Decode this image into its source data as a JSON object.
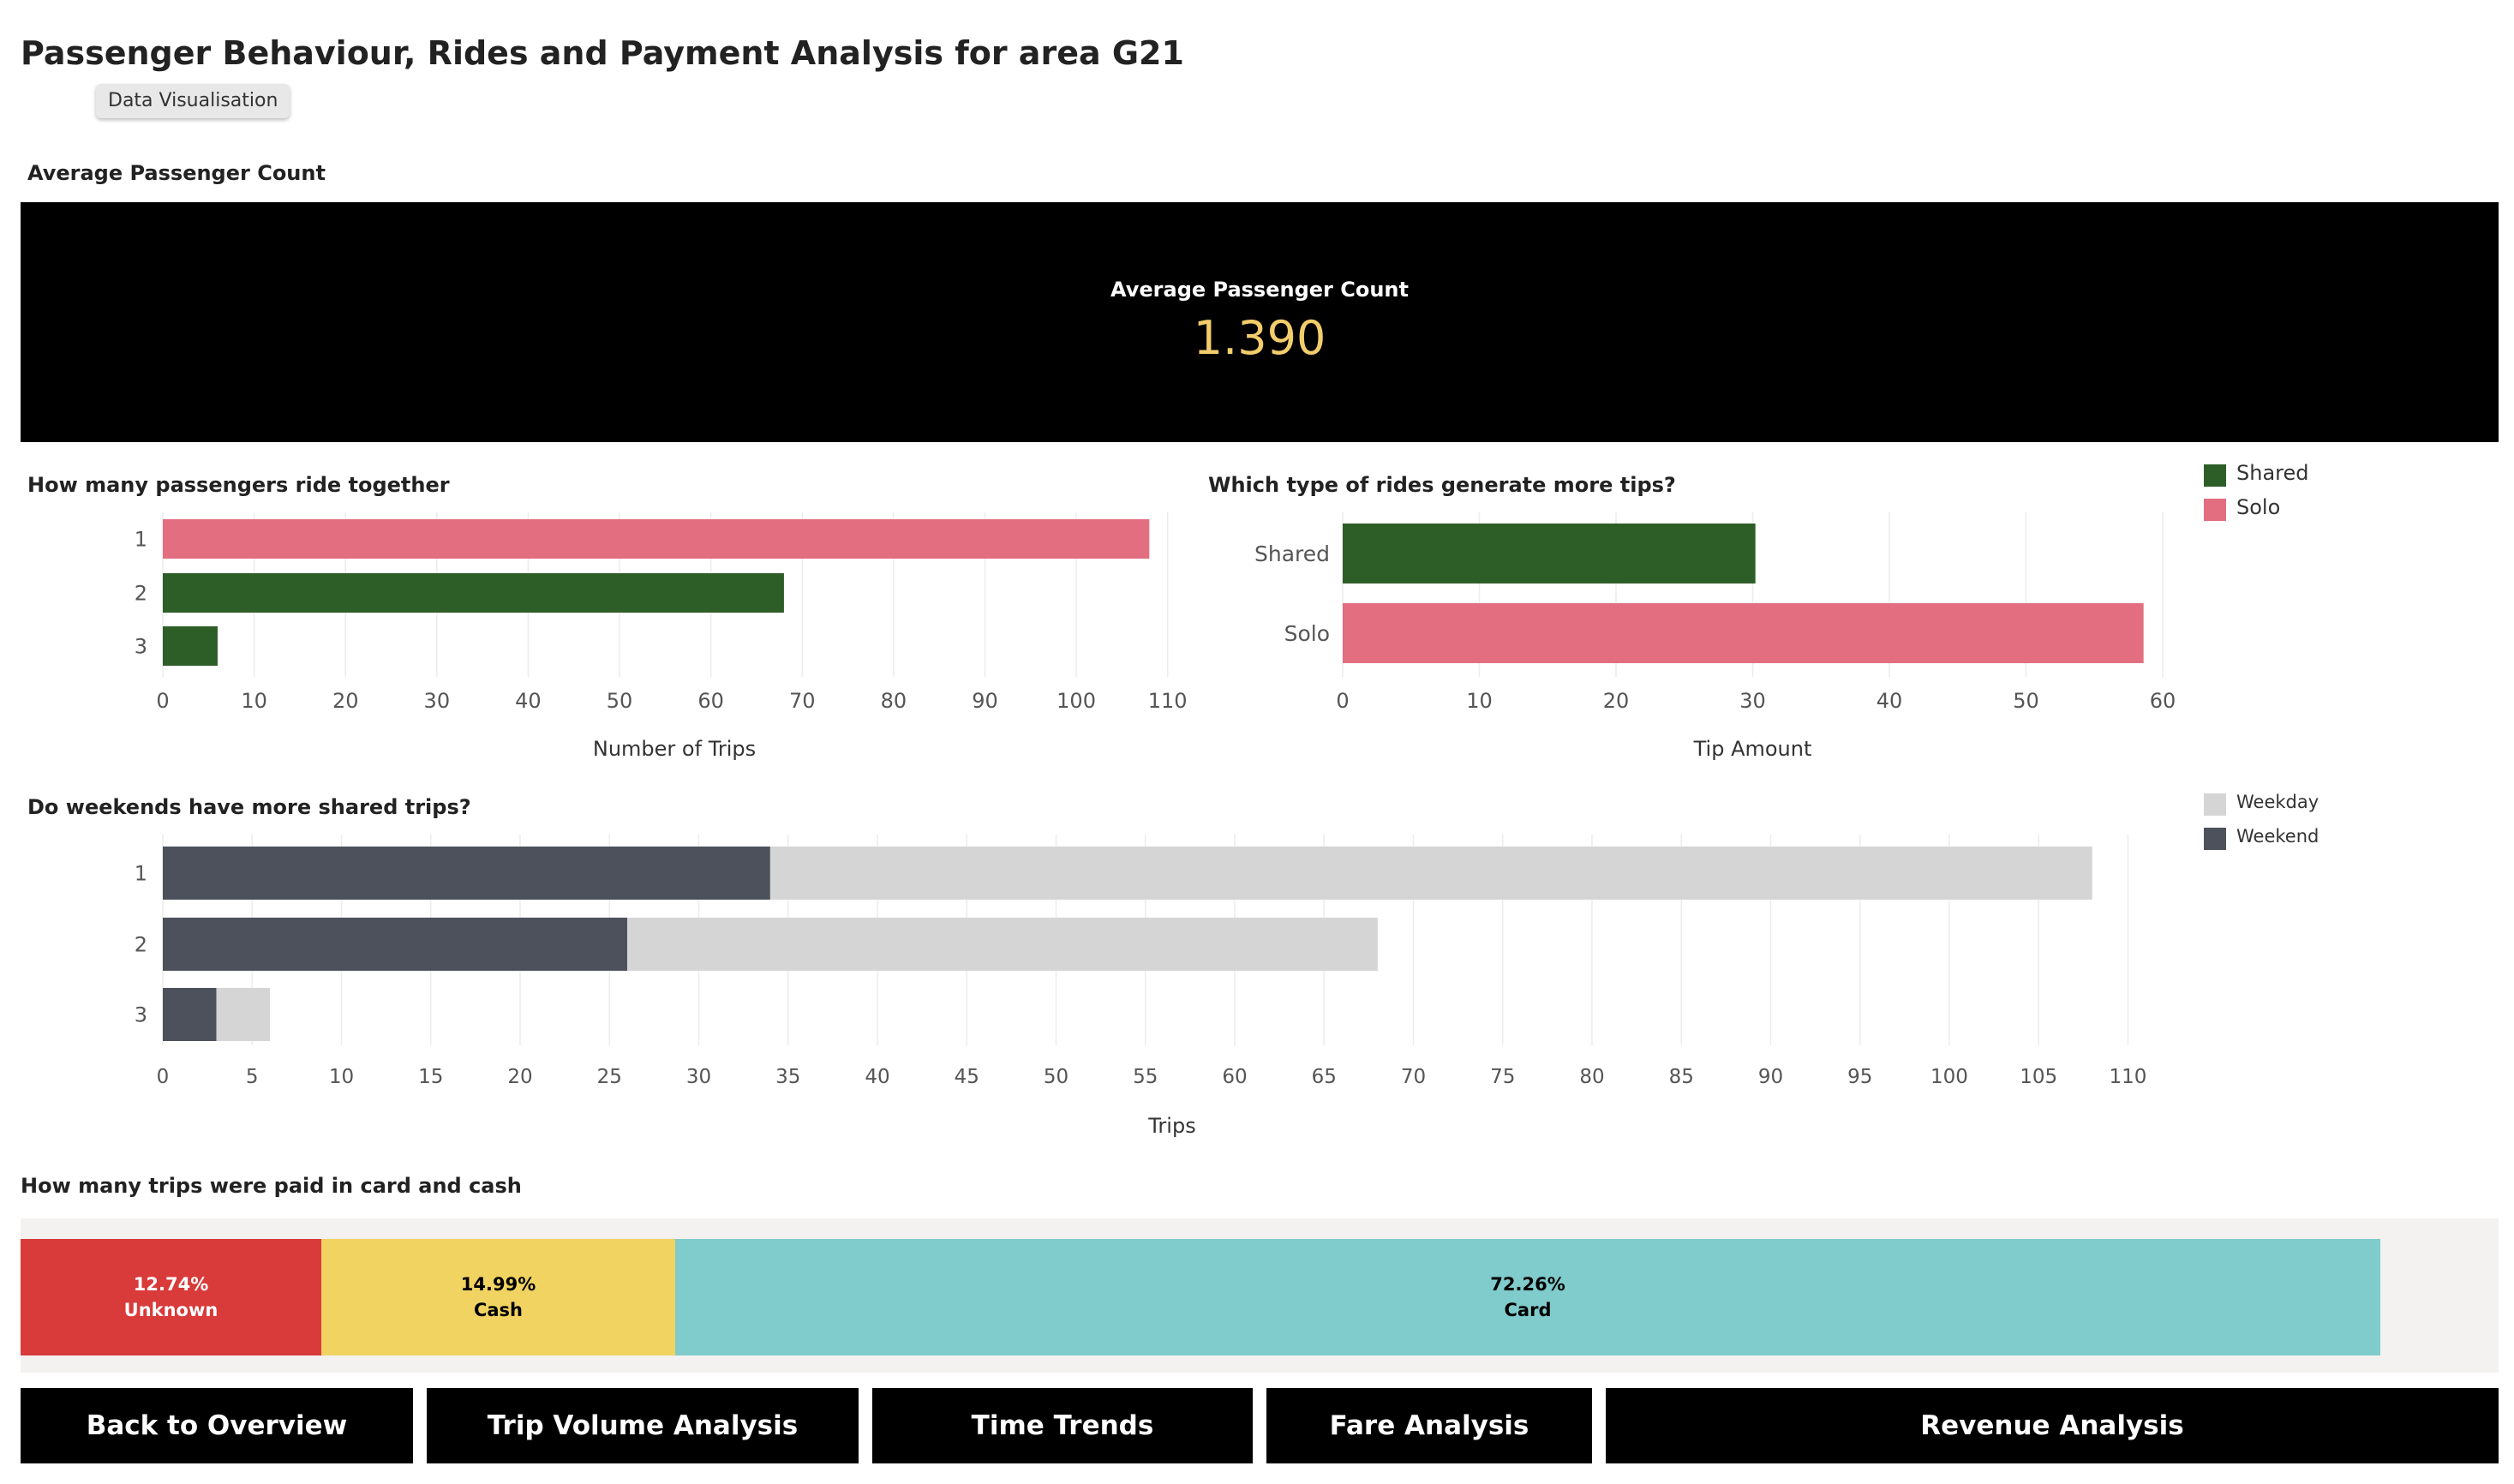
{
  "title": "Passenger Behaviour, Rides and Payment Analysis for area G21",
  "tag": "Data Visualisation",
  "kpi": {
    "section_title": "Average Passenger Count",
    "label": "Average Passenger Count",
    "value": "1.390",
    "value_color": "#f3cd6b"
  },
  "colors": {
    "shared": "#2e5e28",
    "solo": "#e26e80",
    "weekday": "#d5d5d5",
    "weekend": "#4c515c",
    "unknown": "#d93a3a",
    "cash": "#f1d361",
    "card": "#80cbcb",
    "button_bg": "#000000"
  },
  "legends": {
    "ride_type": [
      {
        "label": "Shared",
        "color": "#2e5e28"
      },
      {
        "label": "Solo",
        "color": "#e26e80"
      }
    ],
    "day_type": [
      {
        "label": "Weekday",
        "color": "#d5d5d5"
      },
      {
        "label": "Weekend",
        "color": "#4c515c"
      }
    ]
  },
  "payment": {
    "section_title": "How many trips were paid in card and cash",
    "segments": [
      {
        "percent": "12.74%",
        "label": "Unknown",
        "share": 12.74,
        "color": "#d93a3a",
        "text_color": "#ffffff"
      },
      {
        "percent": "14.99%",
        "label": "Cash",
        "share": 14.99,
        "color": "#f1d361",
        "text_color": "#000000"
      },
      {
        "percent": "72.26%",
        "label": "Card",
        "share": 72.26,
        "color": "#80cbcb",
        "text_color": "#000000"
      }
    ]
  },
  "nav": {
    "back": "Back to Overview",
    "trip_volume": "Trip Volume Analysis",
    "time_trends": "Time Trends",
    "fare": "Fare Analysis",
    "revenue": "Revenue Analysis"
  },
  "chart_data": [
    {
      "type": "bar",
      "orientation": "horizontal",
      "title": "How many passengers ride together",
      "categories": [
        "1",
        "2",
        "3"
      ],
      "values": [
        108,
        68,
        6
      ],
      "bar_groups": [
        "Solo",
        "Shared",
        "Shared"
      ],
      "xlabel": "Number of Trips",
      "ylabel": "",
      "xlim": [
        0,
        112
      ],
      "xticks": [
        0,
        10,
        20,
        30,
        40,
        50,
        60,
        70,
        80,
        90,
        100,
        110
      ],
      "grid": true,
      "legend": "right"
    },
    {
      "type": "bar",
      "orientation": "horizontal",
      "title": "Which type of rides generate more tips?",
      "categories": [
        "Shared",
        "Solo"
      ],
      "values": [
        30.2,
        58.6
      ],
      "xlabel": "Tip Amount",
      "ylabel": "",
      "xlim": [
        0,
        60
      ],
      "xticks": [
        0,
        10,
        20,
        30,
        40,
        50,
        60
      ],
      "grid": true,
      "legend": "right"
    },
    {
      "type": "bar",
      "orientation": "horizontal",
      "stacked": true,
      "title": "Do weekends have more shared trips?",
      "categories": [
        "1",
        "2",
        "3"
      ],
      "series": [
        {
          "name": "Weekend",
          "values": [
            34,
            26,
            3
          ]
        },
        {
          "name": "Weekday",
          "values": [
            74,
            42,
            3
          ]
        }
      ],
      "xlabel": "Trips",
      "ylabel": "",
      "xlim": [
        0,
        113
      ],
      "xticks": [
        0,
        5,
        10,
        15,
        20,
        25,
        30,
        35,
        40,
        45,
        50,
        55,
        60,
        65,
        70,
        75,
        80,
        85,
        90,
        95,
        100,
        105,
        110
      ],
      "grid": true,
      "legend": "right"
    }
  ]
}
